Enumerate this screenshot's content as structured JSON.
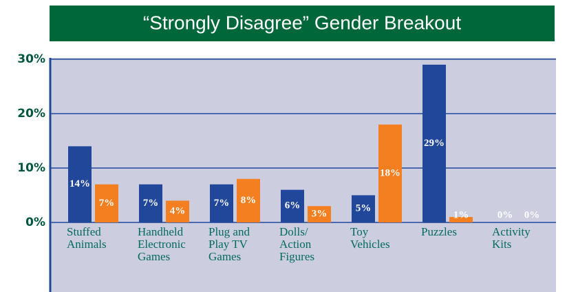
{
  "chart_data": {
    "type": "bar",
    "title": "“Strongly Disagree” Gender Breakout",
    "categories": [
      "Stuffed Animals",
      "Handheld Electronic Games",
      "Plug and Play TV Games",
      "Dolls/ Action Figures",
      "Toy Vehicles",
      "Puzzles",
      "Activity Kits"
    ],
    "series": [
      {
        "color": "#21479b",
        "values": [
          14,
          7,
          7,
          6,
          5,
          29,
          0
        ],
        "value_labels": [
          "14%",
          "7%",
          "7%",
          "6%",
          "5%",
          "29%",
          "0%"
        ]
      },
      {
        "color": "#f47f20",
        "values": [
          7,
          4,
          8,
          3,
          18,
          1,
          0
        ],
        "value_labels": [
          "7%",
          "4%",
          "8%",
          "3%",
          "18%",
          "1%",
          "0%"
        ]
      }
    ],
    "ylim": [
      0,
      30
    ],
    "yticks": [
      {
        "value": 0,
        "label": "0%"
      },
      {
        "value": 10,
        "label": "10%"
      },
      {
        "value": 20,
        "label": "20%"
      },
      {
        "value": 30,
        "label": "30%"
      }
    ],
    "grid": true
  }
}
